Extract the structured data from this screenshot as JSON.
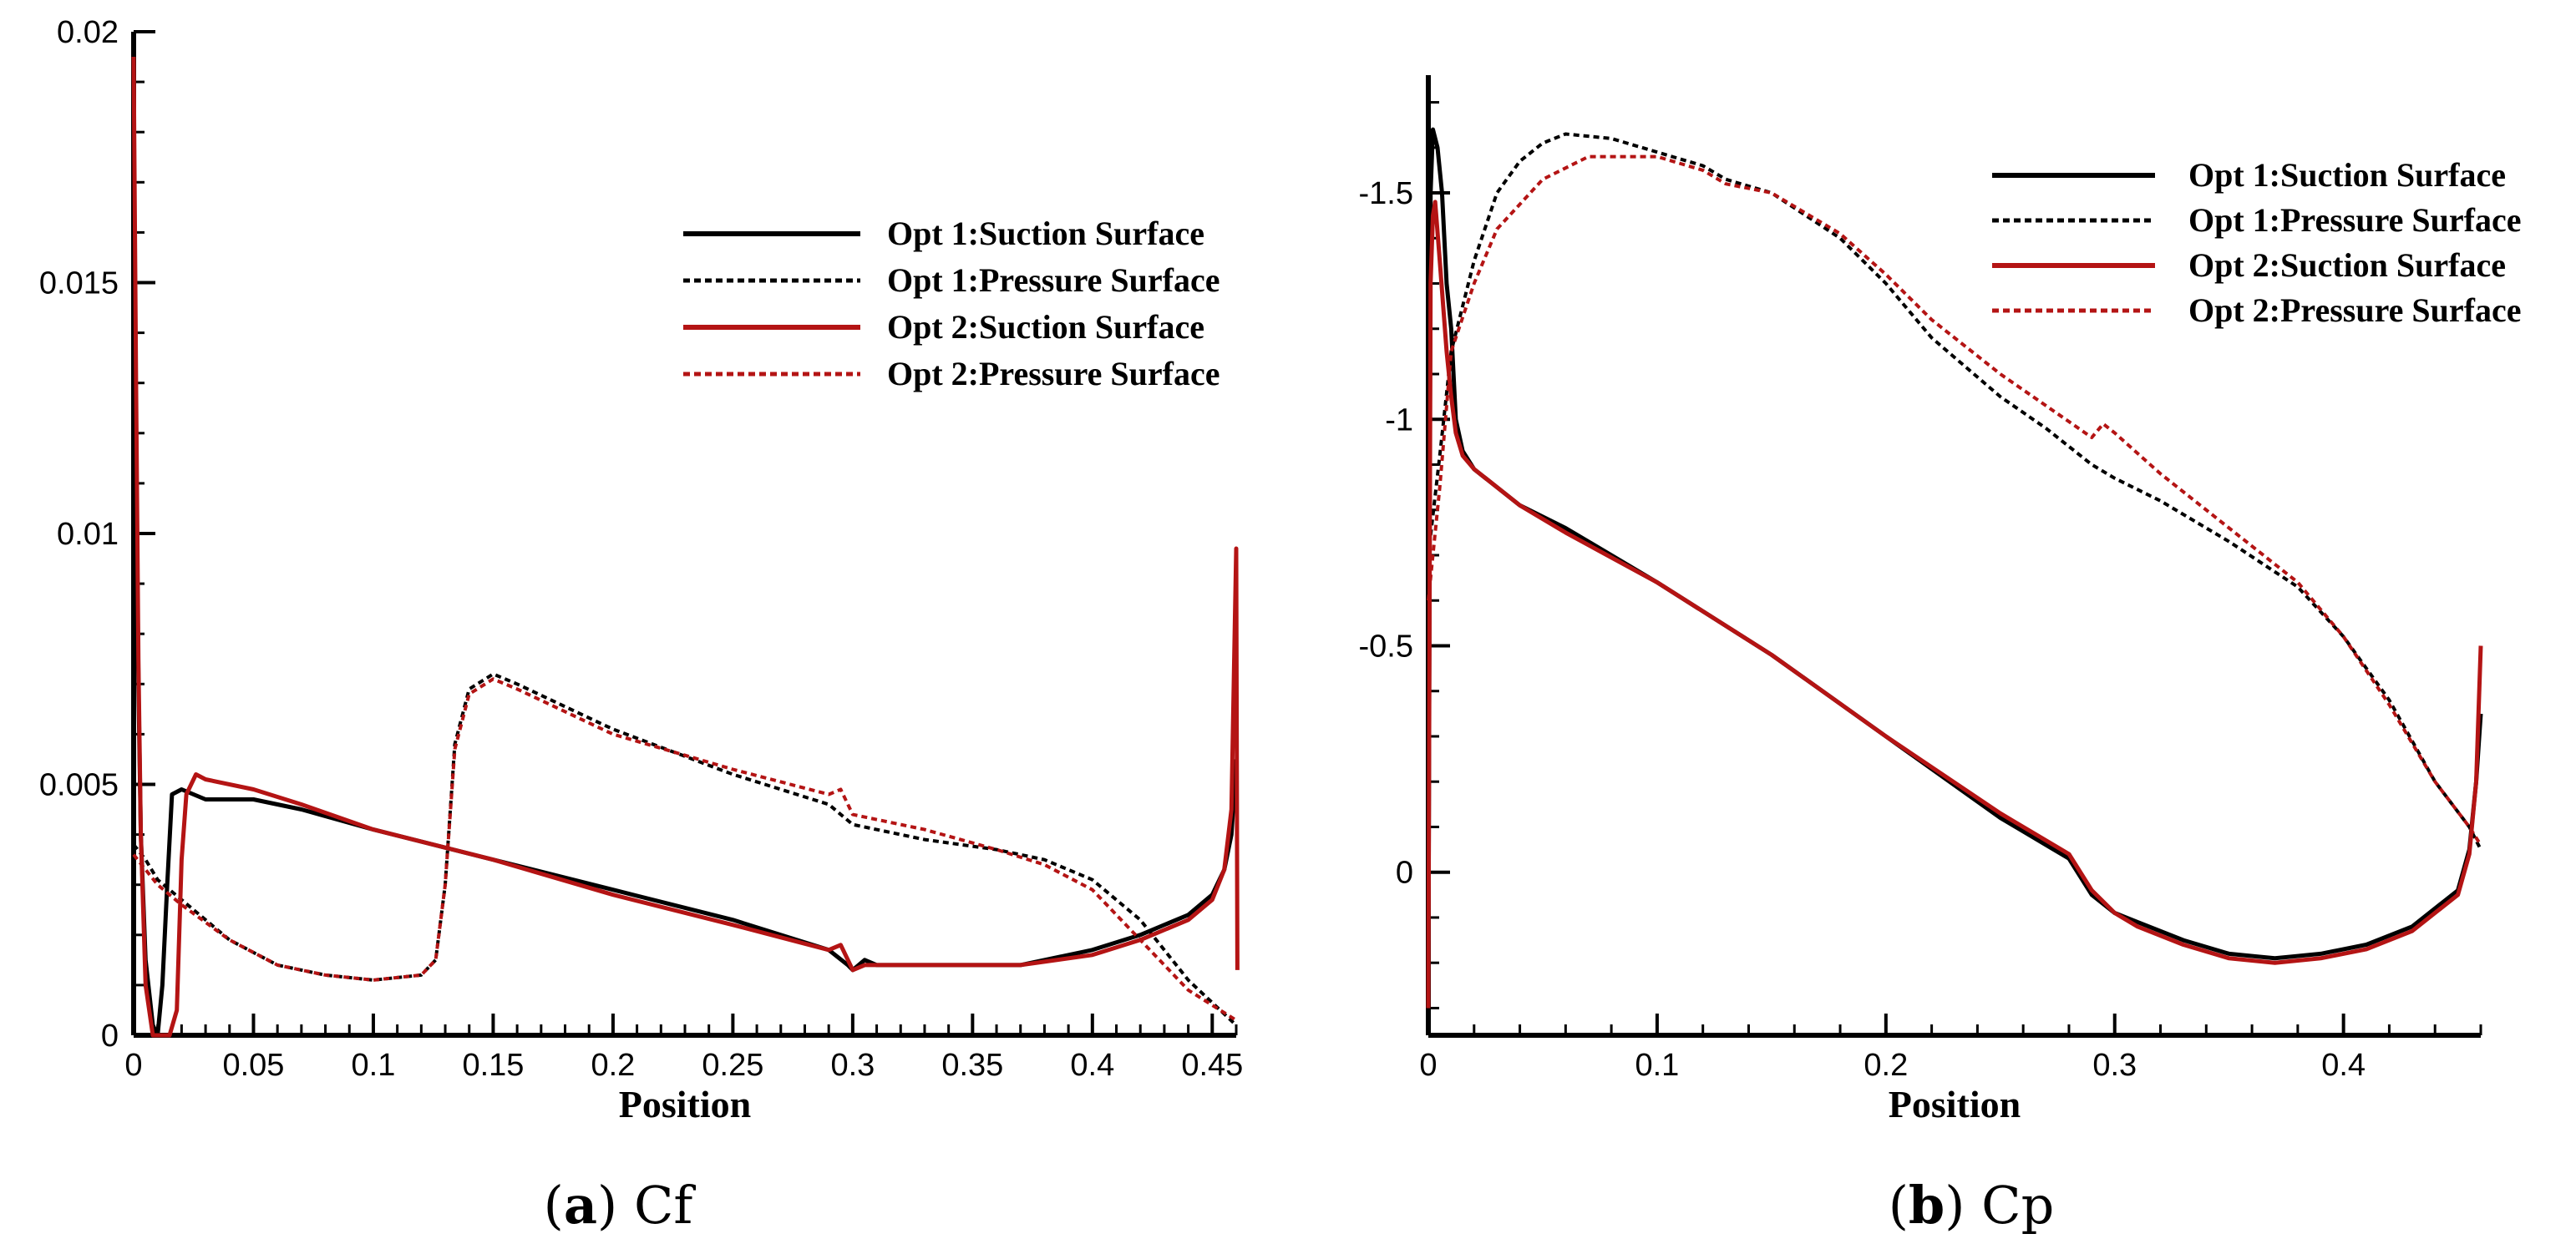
{
  "charts": [
    {
      "id": "a",
      "type": "line",
      "caption_letter": "a",
      "caption_text": "Cf",
      "xlabel": "Position",
      "ylabel": "",
      "xlim": [
        0,
        0.46
      ],
      "ylim": [
        0,
        0.02
      ],
      "x_ticks": [
        0,
        0.05,
        0.1,
        0.15,
        0.2,
        0.25,
        0.3,
        0.35,
        0.4,
        0.45
      ],
      "x_tick_labels": [
        "0",
        "0.05",
        "0.1",
        "0.15",
        "0.2",
        "0.25",
        "0.3",
        "0.35",
        "0.4",
        "0.45"
      ],
      "y_ticks": [
        0,
        0.005,
        0.01,
        0.015,
        0.02
      ],
      "y_tick_labels": [
        "0",
        "0.005",
        "0.01",
        "0.015",
        "0.02"
      ],
      "legend_position": "top-right",
      "series": [
        {
          "name": "Opt 1:Suction Surface",
          "color": "#000000",
          "dash": "solid",
          "points": [
            [
              0,
              0.0185
            ],
            [
              0.001,
              0.012
            ],
            [
              0.002,
              0.007
            ],
            [
              0.003,
              0.004
            ],
            [
              0.005,
              0.0015
            ],
            [
              0.008,
              0.0002
            ],
            [
              0.01,
              0
            ],
            [
              0.012,
              0.001
            ],
            [
              0.014,
              0.003
            ],
            [
              0.016,
              0.0048
            ],
            [
              0.02,
              0.0049
            ],
            [
              0.03,
              0.0047
            ],
            [
              0.05,
              0.0047
            ],
            [
              0.07,
              0.0045
            ],
            [
              0.1,
              0.0041
            ],
            [
              0.15,
              0.0035
            ],
            [
              0.2,
              0.0029
            ],
            [
              0.25,
              0.0023
            ],
            [
              0.29,
              0.0017
            ],
            [
              0.298,
              0.0014
            ],
            [
              0.3,
              0.0013
            ],
            [
              0.305,
              0.0015
            ],
            [
              0.31,
              0.0014
            ],
            [
              0.34,
              0.0014
            ],
            [
              0.37,
              0.0014
            ],
            [
              0.4,
              0.0017
            ],
            [
              0.42,
              0.002
            ],
            [
              0.44,
              0.0024
            ],
            [
              0.45,
              0.0028
            ],
            [
              0.455,
              0.0033
            ],
            [
              0.458,
              0.004
            ],
            [
              0.46,
              0.0055
            ]
          ]
        },
        {
          "name": "Opt 1:Pressure Surface",
          "color": "#000000",
          "dash": "dotted",
          "points": [
            [
              0,
              0.0038
            ],
            [
              0.005,
              0.0035
            ],
            [
              0.01,
              0.0031
            ],
            [
              0.02,
              0.0027
            ],
            [
              0.04,
              0.0019
            ],
            [
              0.06,
              0.0014
            ],
            [
              0.08,
              0.0012
            ],
            [
              0.1,
              0.0011
            ],
            [
              0.12,
              0.0012
            ],
            [
              0.126,
              0.0015
            ],
            [
              0.13,
              0.003
            ],
            [
              0.134,
              0.0058
            ],
            [
              0.14,
              0.0069
            ],
            [
              0.15,
              0.0072
            ],
            [
              0.16,
              0.007
            ],
            [
              0.2,
              0.0061
            ],
            [
              0.25,
              0.0052
            ],
            [
              0.29,
              0.0046
            ],
            [
              0.3,
              0.0042
            ],
            [
              0.33,
              0.0039
            ],
            [
              0.36,
              0.0037
            ],
            [
              0.38,
              0.0035
            ],
            [
              0.4,
              0.0031
            ],
            [
              0.42,
              0.0023
            ],
            [
              0.44,
              0.0011
            ],
            [
              0.46,
              0.0002
            ]
          ]
        },
        {
          "name": "Opt 2:Suction Surface",
          "color": "#b41414",
          "dash": "solid",
          "points": [
            [
              0,
              0.0195
            ],
            [
              0.001,
              0.013
            ],
            [
              0.002,
              0.0075
            ],
            [
              0.003,
              0.004
            ],
            [
              0.005,
              0.001
            ],
            [
              0.008,
              0
            ],
            [
              0.015,
              0
            ],
            [
              0.018,
              0.0005
            ],
            [
              0.02,
              0.0035
            ],
            [
              0.022,
              0.0048
            ],
            [
              0.026,
              0.0052
            ],
            [
              0.03,
              0.0051
            ],
            [
              0.05,
              0.0049
            ],
            [
              0.07,
              0.0046
            ],
            [
              0.1,
              0.0041
            ],
            [
              0.15,
              0.0035
            ],
            [
              0.2,
              0.0028
            ],
            [
              0.25,
              0.0022
            ],
            [
              0.29,
              0.0017
            ],
            [
              0.295,
              0.0018
            ],
            [
              0.3,
              0.0013
            ],
            [
              0.305,
              0.0014
            ],
            [
              0.31,
              0.0014
            ],
            [
              0.34,
              0.0014
            ],
            [
              0.37,
              0.0014
            ],
            [
              0.4,
              0.0016
            ],
            [
              0.42,
              0.0019
            ],
            [
              0.44,
              0.0023
            ],
            [
              0.45,
              0.0027
            ],
            [
              0.455,
              0.0033
            ],
            [
              0.458,
              0.0045
            ],
            [
              0.46,
              0.0097
            ],
            [
              0.4605,
              0.0013
            ]
          ]
        },
        {
          "name": "Opt 2:Pressure Surface",
          "color": "#b41414",
          "dash": "dotted",
          "points": [
            [
              0,
              0.0036
            ],
            [
              0.005,
              0.0033
            ],
            [
              0.01,
              0.003
            ],
            [
              0.02,
              0.0026
            ],
            [
              0.04,
              0.0019
            ],
            [
              0.06,
              0.0014
            ],
            [
              0.08,
              0.0012
            ],
            [
              0.1,
              0.0011
            ],
            [
              0.12,
              0.0012
            ],
            [
              0.126,
              0.0015
            ],
            [
              0.13,
              0.003
            ],
            [
              0.134,
              0.0057
            ],
            [
              0.14,
              0.0068
            ],
            [
              0.15,
              0.0071
            ],
            [
              0.16,
              0.0069
            ],
            [
              0.2,
              0.006
            ],
            [
              0.25,
              0.0053
            ],
            [
              0.29,
              0.0048
            ],
            [
              0.295,
              0.0049
            ],
            [
              0.3,
              0.0044
            ],
            [
              0.33,
              0.0041
            ],
            [
              0.36,
              0.0037
            ],
            [
              0.38,
              0.0034
            ],
            [
              0.4,
              0.0029
            ],
            [
              0.42,
              0.0019
            ],
            [
              0.44,
              0.0009
            ],
            [
              0.46,
              0.0003
            ]
          ]
        }
      ]
    },
    {
      "id": "b",
      "type": "line",
      "caption_letter": "b",
      "caption_text": "Cp",
      "xlabel": "Position",
      "ylabel": "",
      "y_inverted": true,
      "xlim": [
        0,
        0.46
      ],
      "ylim": [
        -1.76,
        0.36
      ],
      "x_ticks": [
        0,
        0.1,
        0.2,
        0.3,
        0.4
      ],
      "x_tick_labels": [
        "0",
        "0.1",
        "0.2",
        "0.3",
        "0.4"
      ],
      "y_ticks": [
        -1.5,
        -1,
        -0.5,
        0
      ],
      "y_tick_labels": [
        "-1.5",
        "-1",
        "-0.5",
        "0"
      ],
      "legend_position": "top-right",
      "series": [
        {
          "name": "Opt 1:Suction Surface",
          "color": "#000000",
          "dash": "solid",
          "points": [
            [
              0,
              0.3
            ],
            [
              0.001,
              -1.5
            ],
            [
              0.002,
              -1.64
            ],
            [
              0.004,
              -1.6
            ],
            [
              0.006,
              -1.5
            ],
            [
              0.008,
              -1.3
            ],
            [
              0.01,
              -1.2
            ],
            [
              0.012,
              -1.0
            ],
            [
              0.015,
              -0.93
            ],
            [
              0.02,
              -0.89
            ],
            [
              0.04,
              -0.81
            ],
            [
              0.06,
              -0.76
            ],
            [
              0.1,
              -0.64
            ],
            [
              0.15,
              -0.48
            ],
            [
              0.2,
              -0.3
            ],
            [
              0.25,
              -0.12
            ],
            [
              0.28,
              -0.03
            ],
            [
              0.29,
              0.05
            ],
            [
              0.3,
              0.09
            ],
            [
              0.31,
              0.11
            ],
            [
              0.33,
              0.15
            ],
            [
              0.35,
              0.18
            ],
            [
              0.37,
              0.19
            ],
            [
              0.39,
              0.18
            ],
            [
              0.41,
              0.16
            ],
            [
              0.43,
              0.12
            ],
            [
              0.45,
              0.04
            ],
            [
              0.455,
              -0.05
            ],
            [
              0.458,
              -0.2
            ],
            [
              0.46,
              -0.35
            ]
          ]
        },
        {
          "name": "Opt 1:Pressure Surface",
          "color": "#000000",
          "dash": "dotted",
          "points": [
            [
              0,
              -0.7
            ],
            [
              0.005,
              -0.92
            ],
            [
              0.01,
              -1.15
            ],
            [
              0.02,
              -1.35
            ],
            [
              0.03,
              -1.5
            ],
            [
              0.04,
              -1.57
            ],
            [
              0.05,
              -1.61
            ],
            [
              0.06,
              -1.63
            ],
            [
              0.08,
              -1.62
            ],
            [
              0.1,
              -1.59
            ],
            [
              0.12,
              -1.56
            ],
            [
              0.13,
              -1.53
            ],
            [
              0.15,
              -1.5
            ],
            [
              0.18,
              -1.4
            ],
            [
              0.2,
              -1.3
            ],
            [
              0.22,
              -1.18
            ],
            [
              0.25,
              -1.05
            ],
            [
              0.27,
              -0.98
            ],
            [
              0.29,
              -0.9
            ],
            [
              0.3,
              -0.87
            ],
            [
              0.32,
              -0.82
            ],
            [
              0.35,
              -0.73
            ],
            [
              0.38,
              -0.63
            ],
            [
              0.4,
              -0.52
            ],
            [
              0.42,
              -0.38
            ],
            [
              0.44,
              -0.2
            ],
            [
              0.455,
              -0.1
            ],
            [
              0.46,
              -0.05
            ]
          ]
        },
        {
          "name": "Opt 2:Suction Surface",
          "color": "#b41414",
          "dash": "solid",
          "points": [
            [
              0,
              0.3
            ],
            [
              0.001,
              -1.3
            ],
            [
              0.002,
              -1.45
            ],
            [
              0.003,
              -1.48
            ],
            [
              0.005,
              -1.35
            ],
            [
              0.008,
              -1.15
            ],
            [
              0.01,
              -1.05
            ],
            [
              0.012,
              -0.97
            ],
            [
              0.015,
              -0.92
            ],
            [
              0.02,
              -0.89
            ],
            [
              0.04,
              -0.81
            ],
            [
              0.06,
              -0.75
            ],
            [
              0.1,
              -0.64
            ],
            [
              0.15,
              -0.48
            ],
            [
              0.2,
              -0.3
            ],
            [
              0.25,
              -0.13
            ],
            [
              0.28,
              -0.04
            ],
            [
              0.29,
              0.04
            ],
            [
              0.3,
              0.09
            ],
            [
              0.31,
              0.12
            ],
            [
              0.33,
              0.16
            ],
            [
              0.35,
              0.19
            ],
            [
              0.37,
              0.2
            ],
            [
              0.39,
              0.19
            ],
            [
              0.41,
              0.17
            ],
            [
              0.43,
              0.13
            ],
            [
              0.45,
              0.05
            ],
            [
              0.455,
              -0.04
            ],
            [
              0.458,
              -0.2
            ],
            [
              0.46,
              -0.5
            ]
          ]
        },
        {
          "name": "Opt 2:Pressure Surface",
          "color": "#b41414",
          "dash": "dotted",
          "points": [
            [
              0,
              -0.6
            ],
            [
              0.005,
              -0.85
            ],
            [
              0.01,
              -1.15
            ],
            [
              0.02,
              -1.3
            ],
            [
              0.03,
              -1.42
            ],
            [
              0.05,
              -1.53
            ],
            [
              0.07,
              -1.58
            ],
            [
              0.1,
              -1.58
            ],
            [
              0.12,
              -1.55
            ],
            [
              0.13,
              -1.52
            ],
            [
              0.15,
              -1.5
            ],
            [
              0.18,
              -1.41
            ],
            [
              0.2,
              -1.32
            ],
            [
              0.22,
              -1.22
            ],
            [
              0.25,
              -1.1
            ],
            [
              0.27,
              -1.03
            ],
            [
              0.29,
              -0.96
            ],
            [
              0.295,
              -0.99
            ],
            [
              0.3,
              -0.97
            ],
            [
              0.32,
              -0.88
            ],
            [
              0.35,
              -0.76
            ],
            [
              0.38,
              -0.64
            ],
            [
              0.4,
              -0.52
            ],
            [
              0.42,
              -0.37
            ],
            [
              0.44,
              -0.2
            ],
            [
              0.455,
              -0.1
            ],
            [
              0.46,
              -0.06
            ]
          ]
        }
      ]
    }
  ]
}
